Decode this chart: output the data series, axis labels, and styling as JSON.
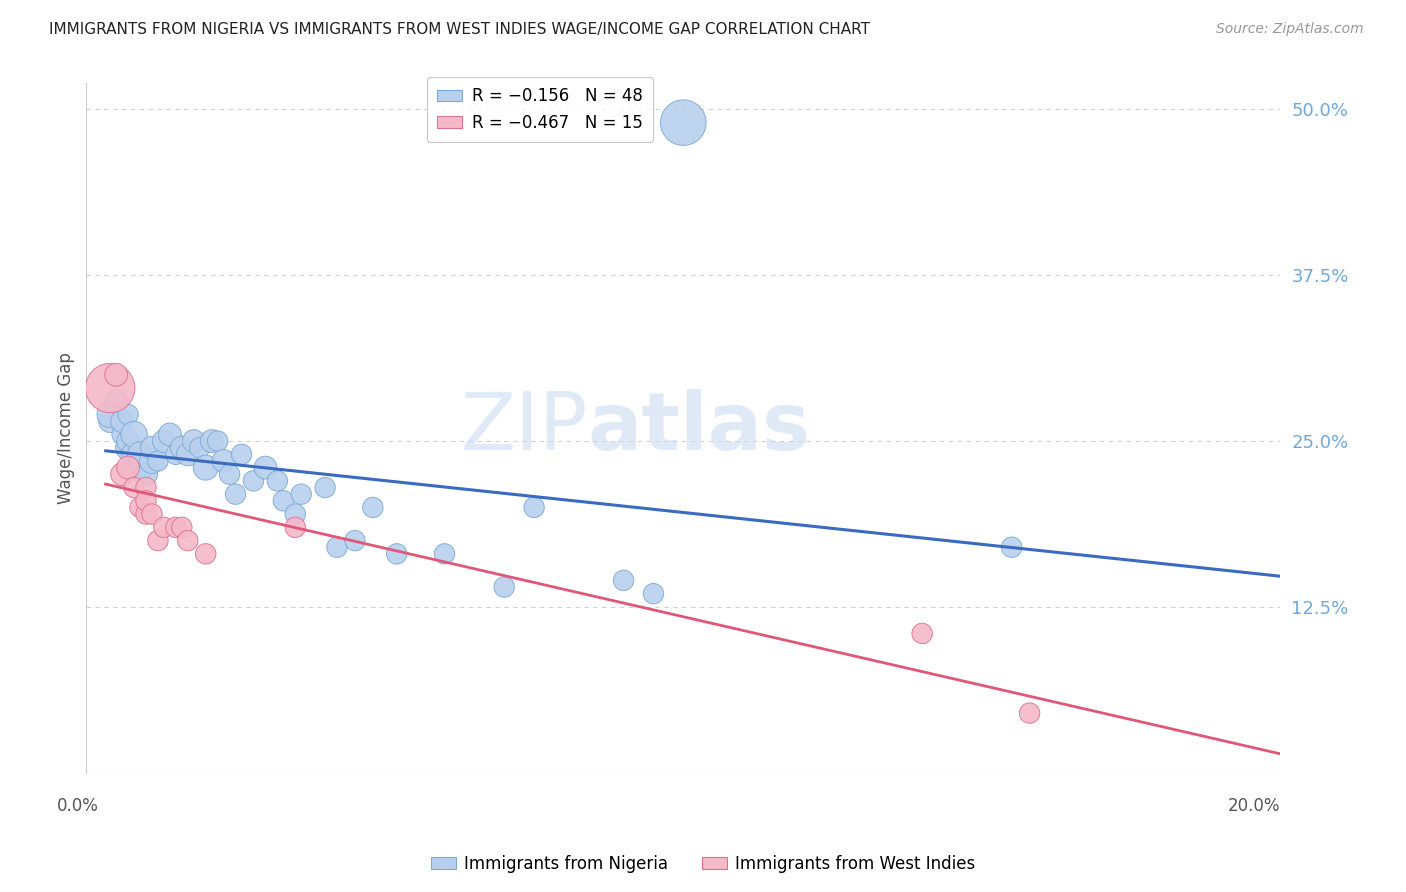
{
  "title": "IMMIGRANTS FROM NIGERIA VS IMMIGRANTS FROM WEST INDIES WAGE/INCOME GAP CORRELATION CHART",
  "source": "Source: ZipAtlas.com",
  "ylabel": "Wage/Income Gap",
  "watermark_zip": "ZIP",
  "watermark_atlas": "atlas",
  "nigeria_color": "#b8d0ee",
  "nigeria_edge": "#7baad4",
  "west_indies_color": "#f5b8c8",
  "west_indies_edge": "#e07090",
  "regression_blue": "#3a6bbf",
  "regression_pink": "#e05878",
  "xlim": [
    0.0,
    0.2
  ],
  "ylim": [
    0.0,
    0.52
  ],
  "nigeria_x": [
    0.004,
    0.004,
    0.005,
    0.006,
    0.006,
    0.007,
    0.007,
    0.007,
    0.008,
    0.008,
    0.009,
    0.009,
    0.01,
    0.011,
    0.011,
    0.012,
    0.013,
    0.014,
    0.015,
    0.016,
    0.017,
    0.018,
    0.019,
    0.02,
    0.021,
    0.022,
    0.023,
    0.024,
    0.025,
    0.026,
    0.028,
    0.03,
    0.032,
    0.033,
    0.035,
    0.036,
    0.04,
    0.042,
    0.045,
    0.048,
    0.052,
    0.06,
    0.07,
    0.075,
    0.09,
    0.095,
    0.155,
    0.1
  ],
  "nigeria_y": [
    0.265,
    0.27,
    0.28,
    0.255,
    0.265,
    0.245,
    0.25,
    0.27,
    0.24,
    0.255,
    0.23,
    0.24,
    0.225,
    0.235,
    0.245,
    0.235,
    0.25,
    0.255,
    0.24,
    0.245,
    0.24,
    0.25,
    0.245,
    0.23,
    0.25,
    0.25,
    0.235,
    0.225,
    0.21,
    0.24,
    0.22,
    0.23,
    0.22,
    0.205,
    0.195,
    0.21,
    0.215,
    0.17,
    0.175,
    0.2,
    0.165,
    0.165,
    0.14,
    0.2,
    0.145,
    0.135,
    0.17,
    0.49
  ],
  "nigeria_size": [
    15,
    20,
    15,
    12,
    15,
    18,
    15,
    12,
    18,
    20,
    20,
    18,
    15,
    18,
    15,
    12,
    15,
    15,
    12,
    15,
    15,
    15,
    12,
    18,
    15,
    12,
    15,
    12,
    12,
    12,
    12,
    15,
    12,
    12,
    12,
    12,
    12,
    12,
    12,
    12,
    12,
    12,
    12,
    12,
    12,
    12,
    12,
    60
  ],
  "west_indies_x": [
    0.004,
    0.005,
    0.006,
    0.007,
    0.008,
    0.009,
    0.01,
    0.01,
    0.01,
    0.011,
    0.012,
    0.013,
    0.015,
    0.016,
    0.017,
    0.02,
    0.035,
    0.14,
    0.158
  ],
  "west_indies_y": [
    0.29,
    0.3,
    0.225,
    0.23,
    0.215,
    0.2,
    0.195,
    0.215,
    0.205,
    0.195,
    0.175,
    0.185,
    0.185,
    0.185,
    0.175,
    0.165,
    0.185,
    0.105,
    0.045
  ],
  "west_indies_size": [
    70,
    15,
    15,
    15,
    12,
    12,
    12,
    12,
    12,
    12,
    12,
    12,
    12,
    12,
    12,
    12,
    12,
    12,
    12
  ],
  "title_color": "#222222",
  "source_color": "#999999",
  "tick_color_right": "#6fa8dc",
  "grid_color": "#d0d0d0",
  "background_color": "#ffffff",
  "y_ticks": [
    0.0,
    0.125,
    0.25,
    0.375,
    0.5
  ],
  "y_tick_labels": [
    "",
    "12.5%",
    "25.0%",
    "37.5%",
    "50.0%"
  ]
}
